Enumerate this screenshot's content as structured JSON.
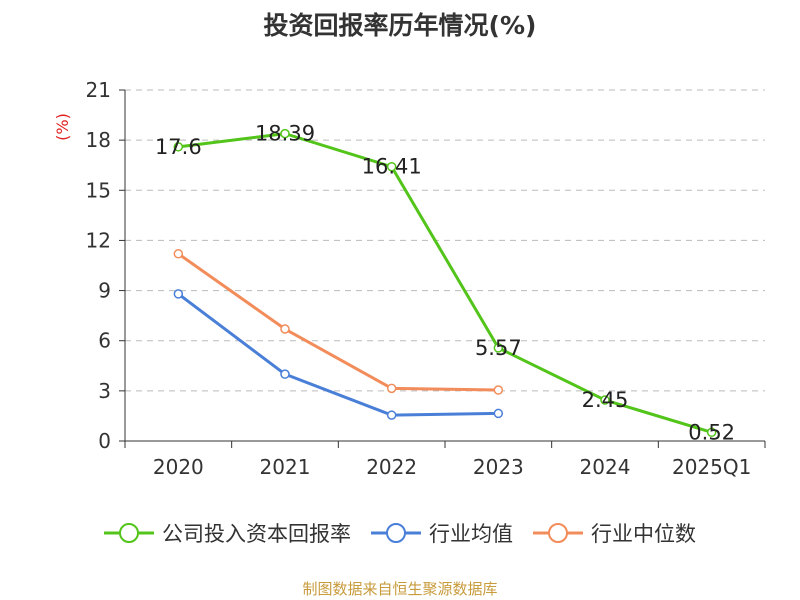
{
  "chart_data": {
    "type": "line",
    "title": "投资回报率历年情况(%)",
    "ylabel": "(%)",
    "xlabel": "",
    "categories": [
      "2020",
      "2021",
      "2022",
      "2023",
      "2024",
      "2025Q1"
    ],
    "ylim": [
      0,
      21
    ],
    "yticks": [
      0,
      3,
      6,
      9,
      12,
      15,
      18,
      21
    ],
    "grid": true,
    "legend_position": "bottom",
    "series": [
      {
        "name": "公司投入资本回报率",
        "color": "#52c41a",
        "values": [
          17.6,
          18.39,
          16.41,
          5.57,
          2.45,
          0.52
        ],
        "labels": [
          "17.6",
          "18.39",
          "16.41",
          "5.57",
          "2.45",
          "0.52"
        ]
      },
      {
        "name": "行业均值",
        "color": "#4a7fd8",
        "values": [
          8.8,
          4.0,
          1.55,
          1.65,
          null,
          null
        ],
        "labels": []
      },
      {
        "name": "行业中位数",
        "color": "#f28c5a",
        "values": [
          11.2,
          6.7,
          3.15,
          3.05,
          null,
          null
        ],
        "labels": []
      }
    ],
    "source": "制图数据来自恒生聚源数据库"
  }
}
